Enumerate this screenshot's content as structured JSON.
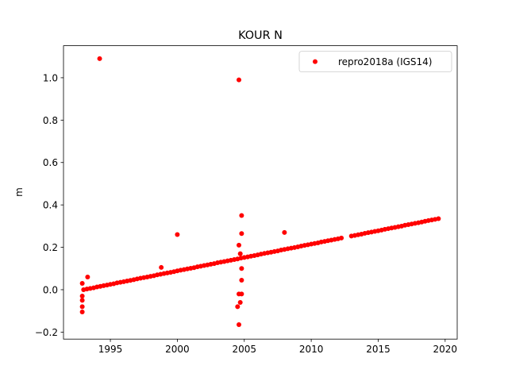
{
  "chart_data": {
    "type": "scatter",
    "title": "KOUR N",
    "y_label": "m",
    "xlim": [
      1991.5,
      2020.9
    ],
    "ylim": [
      -0.233,
      1.151
    ],
    "xticks": [
      1995,
      2000,
      2005,
      2010,
      2015,
      2020
    ],
    "yticks": [
      {
        "value": -0.2,
        "label": "−0.2"
      },
      {
        "value": 0,
        "label": "0.0"
      },
      0.2,
      0.4,
      0.6,
      0.8,
      {
        "value": 1,
        "label": "1.0"
      }
    ],
    "legend": "upper right",
    "series": [
      {
        "name": "repro2018a (IGS14)",
        "color": "#ff0000",
        "x": [
          1993,
          1993.25,
          1993.5,
          1993.75,
          1994,
          1994.25,
          1994.5,
          1994.75,
          1995,
          1995.25,
          1995.5,
          1995.75,
          1996,
          1996.25,
          1996.5,
          1996.75,
          1997,
          1997.25,
          1997.5,
          1997.75,
          1998,
          1998.25,
          1998.5,
          1998.75,
          1999,
          1999.25,
          1999.5,
          1999.75,
          2000,
          2000.25,
          2000.5,
          2000.75,
          2001,
          2001.25,
          2001.5,
          2001.75,
          2002,
          2002.25,
          2002.5,
          2002.75,
          2003,
          2003.25,
          2003.5,
          2003.75,
          2004,
          2004.25,
          2004.5,
          2004.75,
          2005,
          2005.25,
          2005.5,
          2005.75,
          2006,
          2006.25,
          2006.5,
          2006.75,
          2007,
          2007.25,
          2007.5,
          2007.75,
          2008,
          2008.25,
          2008.5,
          2008.75,
          2009,
          2009.25,
          2009.5,
          2009.75,
          2010,
          2010.25,
          2010.5,
          2010.75,
          2011,
          2011.25,
          2011.5,
          2011.75,
          2012,
          2012.25,
          2013,
          2013.25,
          2013.5,
          2013.75,
          2014,
          2014.25,
          2014.5,
          2014.75,
          2015,
          2015.25,
          2015.5,
          2015.75,
          2016,
          2016.25,
          2016.5,
          2016.75,
          2017,
          2017.25,
          2017.5,
          2017.75,
          2018,
          2018.25,
          2018.5,
          2018.75,
          2019,
          2019.25,
          2019.5,
          1994.2,
          2004.6,
          2000,
          2004.8,
          2004.8,
          2008,
          2004.6,
          2004.8,
          2004.6,
          2004.8,
          2004.7,
          2004.5,
          2004.6,
          1992.9,
          1992.9,
          1992.9,
          1992.9,
          1992.9,
          1993.3,
          1998.8,
          2004.7,
          2004.8
        ],
        "values": [
          0,
          0.003,
          0.006,
          0.009,
          0.013,
          0.016,
          0.019,
          0.022,
          0.025,
          0.028,
          0.032,
          0.035,
          0.038,
          0.041,
          0.044,
          0.047,
          0.051,
          0.054,
          0.057,
          0.06,
          0.063,
          0.066,
          0.07,
          0.073,
          0.076,
          0.079,
          0.082,
          0.085,
          0.089,
          0.092,
          0.095,
          0.098,
          0.101,
          0.104,
          0.108,
          0.111,
          0.114,
          0.117,
          0.12,
          0.123,
          0.127,
          0.13,
          0.133,
          0.136,
          0.139,
          0.142,
          0.145,
          0.149,
          0.152,
          0.155,
          0.158,
          0.161,
          0.164,
          0.168,
          0.171,
          0.174,
          0.177,
          0.18,
          0.183,
          0.187,
          0.19,
          0.193,
          0.196,
          0.199,
          0.202,
          0.206,
          0.209,
          0.212,
          0.215,
          0.218,
          0.221,
          0.225,
          0.228,
          0.231,
          0.234,
          0.237,
          0.24,
          0.244,
          0.253,
          0.256,
          0.259,
          0.262,
          0.266,
          0.269,
          0.272,
          0.275,
          0.278,
          0.281,
          0.285,
          0.288,
          0.291,
          0.294,
          0.297,
          0.3,
          0.304,
          0.307,
          0.31,
          0.313,
          0.316,
          0.319,
          0.323,
          0.326,
          0.329,
          0.332,
          0.335,
          1.09,
          0.99,
          0.26,
          0.35,
          0.265,
          0.27,
          0.21,
          0.045,
          -0.02,
          -0.02,
          -0.06,
          -0.08,
          -0.165,
          -0.105,
          -0.08,
          -0.05,
          -0.03,
          0.03,
          0.06,
          0.105,
          0.17,
          0.1
        ]
      }
    ]
  }
}
